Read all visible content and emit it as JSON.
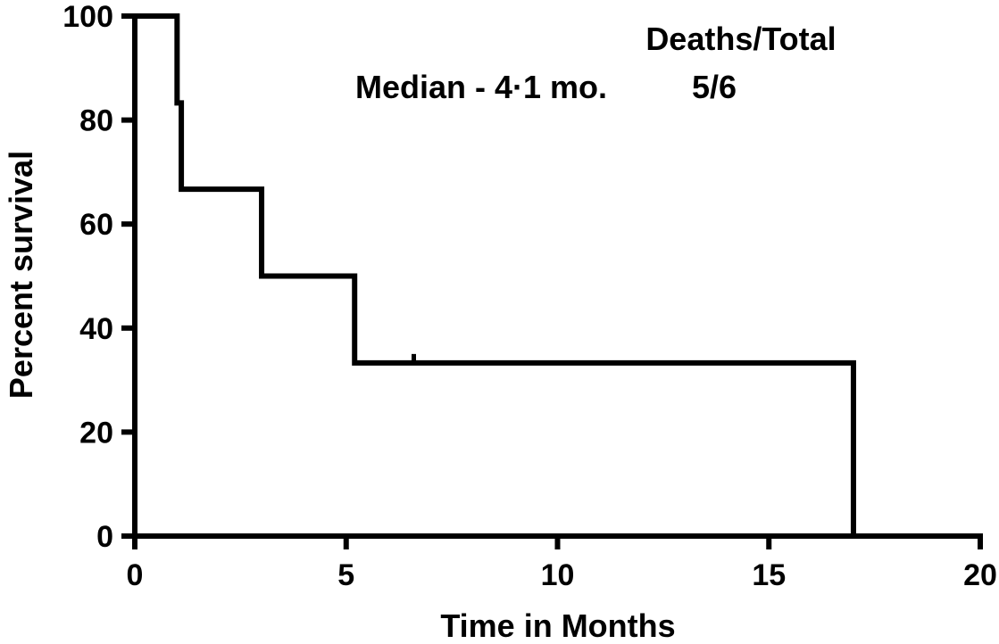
{
  "chart_data": {
    "type": "line",
    "subtype": "kaplan-meier-step",
    "title": "",
    "xlabel": "Time in Months",
    "ylabel": "Percent survival",
    "xlim": [
      0,
      20
    ],
    "ylim": [
      0,
      100
    ],
    "x_ticks": [
      0,
      5,
      10,
      15,
      20
    ],
    "y_ticks": [
      0,
      20,
      40,
      60,
      80,
      100
    ],
    "grid": false,
    "series": [
      {
        "color": "#000000",
        "steps": [
          {
            "x": 0,
            "y": 100
          },
          {
            "x": 1.0,
            "y": 83.3
          },
          {
            "x": 1.1,
            "y": 66.7
          },
          {
            "x": 3.0,
            "y": 50
          },
          {
            "x": 5.2,
            "y": 33.3
          },
          {
            "x": 17.0,
            "y": 0
          }
        ],
        "censored": [
          {
            "x": 6.6,
            "y": 33.3
          }
        ]
      }
    ],
    "annotations": {
      "deaths_header": "Deaths/Total",
      "median": "Median - 4·1 mo.",
      "deaths_value": "5/6"
    }
  }
}
